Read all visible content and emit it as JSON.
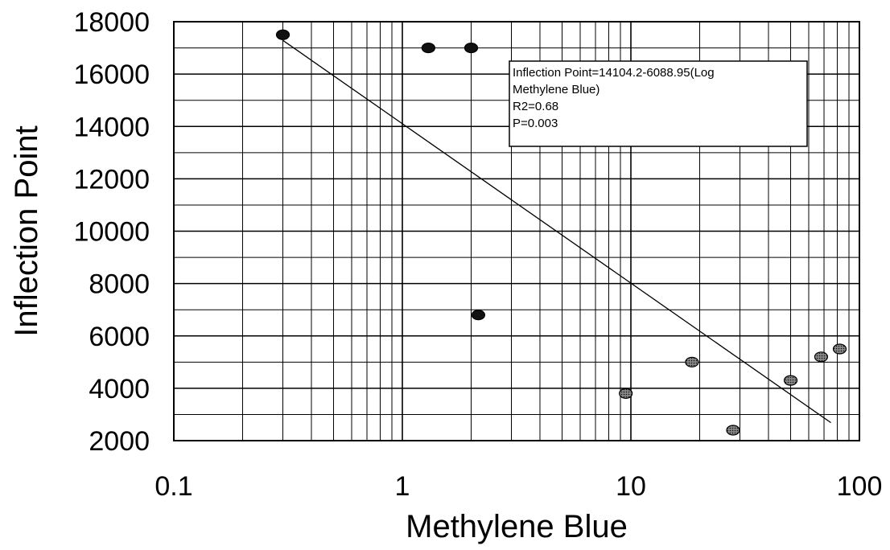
{
  "chart_data": {
    "type": "scatter",
    "title": "",
    "xlabel": "Methylene Blue",
    "ylabel": "Inflection Point",
    "x_scale": "log",
    "xlim": [
      0.1,
      100
    ],
    "ylim": [
      2000,
      18000
    ],
    "x_ticks": [
      "0.1",
      "1",
      "10",
      "100"
    ],
    "y_ticks": [
      "2000",
      "4000",
      "6000",
      "8000",
      "10000",
      "12000",
      "14000",
      "16000",
      "18000"
    ],
    "grid": true,
    "points": [
      {
        "x": 0.3,
        "y": 17500
      },
      {
        "x": 1.3,
        "y": 17000
      },
      {
        "x": 2.0,
        "y": 17000
      },
      {
        "x": 2.15,
        "y": 6800
      },
      {
        "x": 9.5,
        "y": 3800
      },
      {
        "x": 18.5,
        "y": 5000
      },
      {
        "x": 28,
        "y": 2400
      },
      {
        "x": 50,
        "y": 4300
      },
      {
        "x": 68,
        "y": 5200
      },
      {
        "x": 82,
        "y": 5500
      }
    ],
    "regression": {
      "intercept": 14104.2,
      "slope": -6088.95,
      "x_range": [
        0.3,
        75
      ]
    },
    "annotation": {
      "lines": [
        "Inflection Point=14104.2-6088.95(Log",
        "Methylene Blue)",
        "R2=0.68",
        "P=0.003"
      ]
    }
  }
}
